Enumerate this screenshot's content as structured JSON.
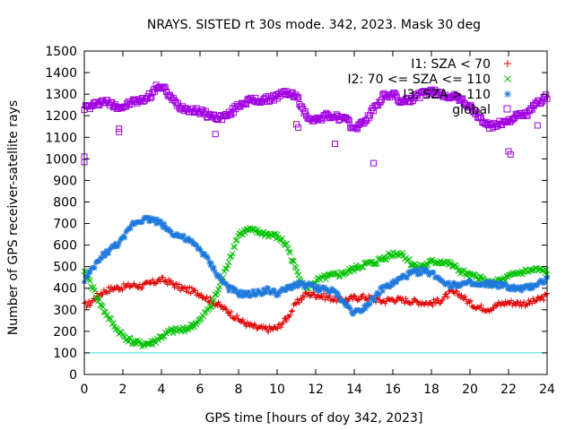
{
  "chart_data": {
    "type": "scatter",
    "title": "NRAYS. SISTED rt 30s mode. 342, 2023. Mask 30 deg",
    "xlabel": "GPS time [hours of doy 342, 2023]",
    "ylabel": "Number of GPS receiver-satellite rays",
    "xlim": [
      0,
      24
    ],
    "ylim": [
      0,
      1500
    ],
    "xticks": [
      0,
      2,
      4,
      6,
      8,
      10,
      12,
      14,
      16,
      18,
      20,
      22,
      24
    ],
    "yticks": [
      0,
      100,
      200,
      300,
      400,
      500,
      600,
      700,
      800,
      900,
      1000,
      1100,
      1200,
      1300,
      1400,
      1500
    ],
    "threshold": {
      "value": 100,
      "color": "#40e0e0"
    },
    "legend_position": "top-right",
    "series": [
      {
        "name": "I1: SZA < 70",
        "marker": "+",
        "color": "#e00000",
        "x": [
          0,
          0.3,
          0.6,
          1,
          1.5,
          2,
          2.5,
          3,
          3.5,
          4,
          4.5,
          5,
          5.5,
          6,
          6.5,
          7,
          7.5,
          8,
          8.5,
          9,
          9.5,
          10,
          10.5,
          11,
          11.5,
          12,
          12.5,
          13,
          13.5,
          14,
          14.5,
          15,
          15.5,
          16,
          16.5,
          17,
          17.5,
          18,
          18.5,
          19,
          19.5,
          20,
          20.5,
          21,
          21.5,
          22,
          22.5,
          23,
          23.5,
          24
        ],
        "y": [
          320,
          330,
          360,
          385,
          400,
          405,
          415,
          410,
          425,
          440,
          425,
          400,
          390,
          375,
          345,
          320,
          290,
          255,
          230,
          215,
          210,
          215,
          260,
          330,
          375,
          370,
          360,
          350,
          345,
          355,
          360,
          350,
          340,
          350,
          345,
          340,
          335,
          330,
          345,
          380,
          370,
          330,
          310,
          305,
          325,
          335,
          330,
          330,
          345,
          365
        ]
      },
      {
        "name": "I2: 70 <= SZA <= 110",
        "marker": "x",
        "color": "#00c000",
        "x": [
          0,
          0.3,
          0.6,
          1,
          1.5,
          2,
          2.5,
          3,
          3.5,
          4,
          4.5,
          5,
          5.5,
          6,
          6.5,
          7,
          7.5,
          8,
          8.5,
          9,
          9.5,
          10,
          10.5,
          11,
          11.5,
          12,
          12.5,
          13,
          13.5,
          14,
          14.5,
          15,
          15.5,
          16,
          16.5,
          17,
          17.5,
          18,
          18.5,
          19,
          19.5,
          20,
          20.5,
          21,
          21.5,
          22,
          22.5,
          23,
          23.5,
          24
        ],
        "y": [
          470,
          430,
          370,
          300,
          230,
          180,
          150,
          140,
          145,
          175,
          200,
          205,
          220,
          250,
          310,
          400,
          530,
          650,
          670,
          660,
          650,
          640,
          600,
          480,
          400,
          430,
          450,
          460,
          470,
          490,
          510,
          515,
          540,
          560,
          560,
          510,
          500,
          520,
          525,
          510,
          480,
          455,
          450,
          420,
          430,
          450,
          470,
          480,
          485,
          475
        ]
      },
      {
        "name": "I3: SZA > 110",
        "marker": "*",
        "color": "#1e78dc",
        "x": [
          0,
          0.3,
          0.6,
          1,
          1.5,
          2,
          2.5,
          3,
          3.5,
          4,
          4.5,
          5,
          5.5,
          6,
          6.5,
          7,
          7.5,
          8,
          8.5,
          9,
          9.5,
          10,
          10.5,
          11,
          11.5,
          12,
          12.5,
          13,
          13.5,
          14,
          14.5,
          15,
          15.5,
          16,
          16.5,
          17,
          17.5,
          18,
          18.5,
          19,
          19.5,
          20,
          20.5,
          21,
          21.5,
          22,
          22.5,
          23,
          23.5,
          24
        ],
        "y": [
          440,
          470,
          510,
          555,
          590,
          625,
          700,
          720,
          720,
          700,
          660,
          640,
          615,
          580,
          520,
          450,
          400,
          375,
          370,
          380,
          390,
          375,
          395,
          420,
          415,
          400,
          395,
          380,
          330,
          285,
          310,
          355,
          400,
          420,
          450,
          470,
          480,
          470,
          440,
          415,
          420,
          420,
          410,
          420,
          415,
          405,
          395,
          400,
          420,
          440
        ]
      },
      {
        "name": "global",
        "marker": "square",
        "color": "#a000e0",
        "x": [
          0,
          0.3,
          0.6,
          1,
          1.5,
          2,
          2.5,
          3,
          3.5,
          3.8,
          4.2,
          4.5,
          5,
          5.5,
          6,
          6.5,
          7,
          7.5,
          8,
          8.5,
          9,
          9.5,
          10,
          10.5,
          11,
          11.5,
          12,
          12.5,
          13,
          13.5,
          14,
          14.5,
          15,
          15.5,
          16,
          16.5,
          17,
          17.5,
          18,
          18.5,
          19,
          19.5,
          20,
          20.5,
          21,
          21.5,
          22,
          22.5,
          23,
          23.5,
          24
        ],
        "y": [
          1240,
          1240,
          1255,
          1270,
          1250,
          1240,
          1265,
          1270,
          1300,
          1340,
          1320,
          1280,
          1240,
          1230,
          1220,
          1200,
          1190,
          1205,
          1250,
          1270,
          1270,
          1275,
          1290,
          1310,
          1290,
          1200,
          1180,
          1200,
          1195,
          1185,
          1140,
          1170,
          1230,
          1290,
          1300,
          1260,
          1280,
          1300,
          1310,
          1300,
          1290,
          1280,
          1240,
          1190,
          1150,
          1160,
          1180,
          1200,
          1210,
          1260,
          1290
        ],
        "outliers": [
          {
            "x": 0,
            "y": 1010
          },
          {
            "x": 0,
            "y": 985
          },
          {
            "x": 1.8,
            "y": 1140
          },
          {
            "x": 1.8,
            "y": 1125
          },
          {
            "x": 6.8,
            "y": 1115
          },
          {
            "x": 11,
            "y": 1160
          },
          {
            "x": 11.1,
            "y": 1145
          },
          {
            "x": 13,
            "y": 1070
          },
          {
            "x": 15,
            "y": 980
          },
          {
            "x": 22,
            "y": 1035
          },
          {
            "x": 22.1,
            "y": 1020
          },
          {
            "x": 23.5,
            "y": 1155
          }
        ]
      }
    ]
  }
}
